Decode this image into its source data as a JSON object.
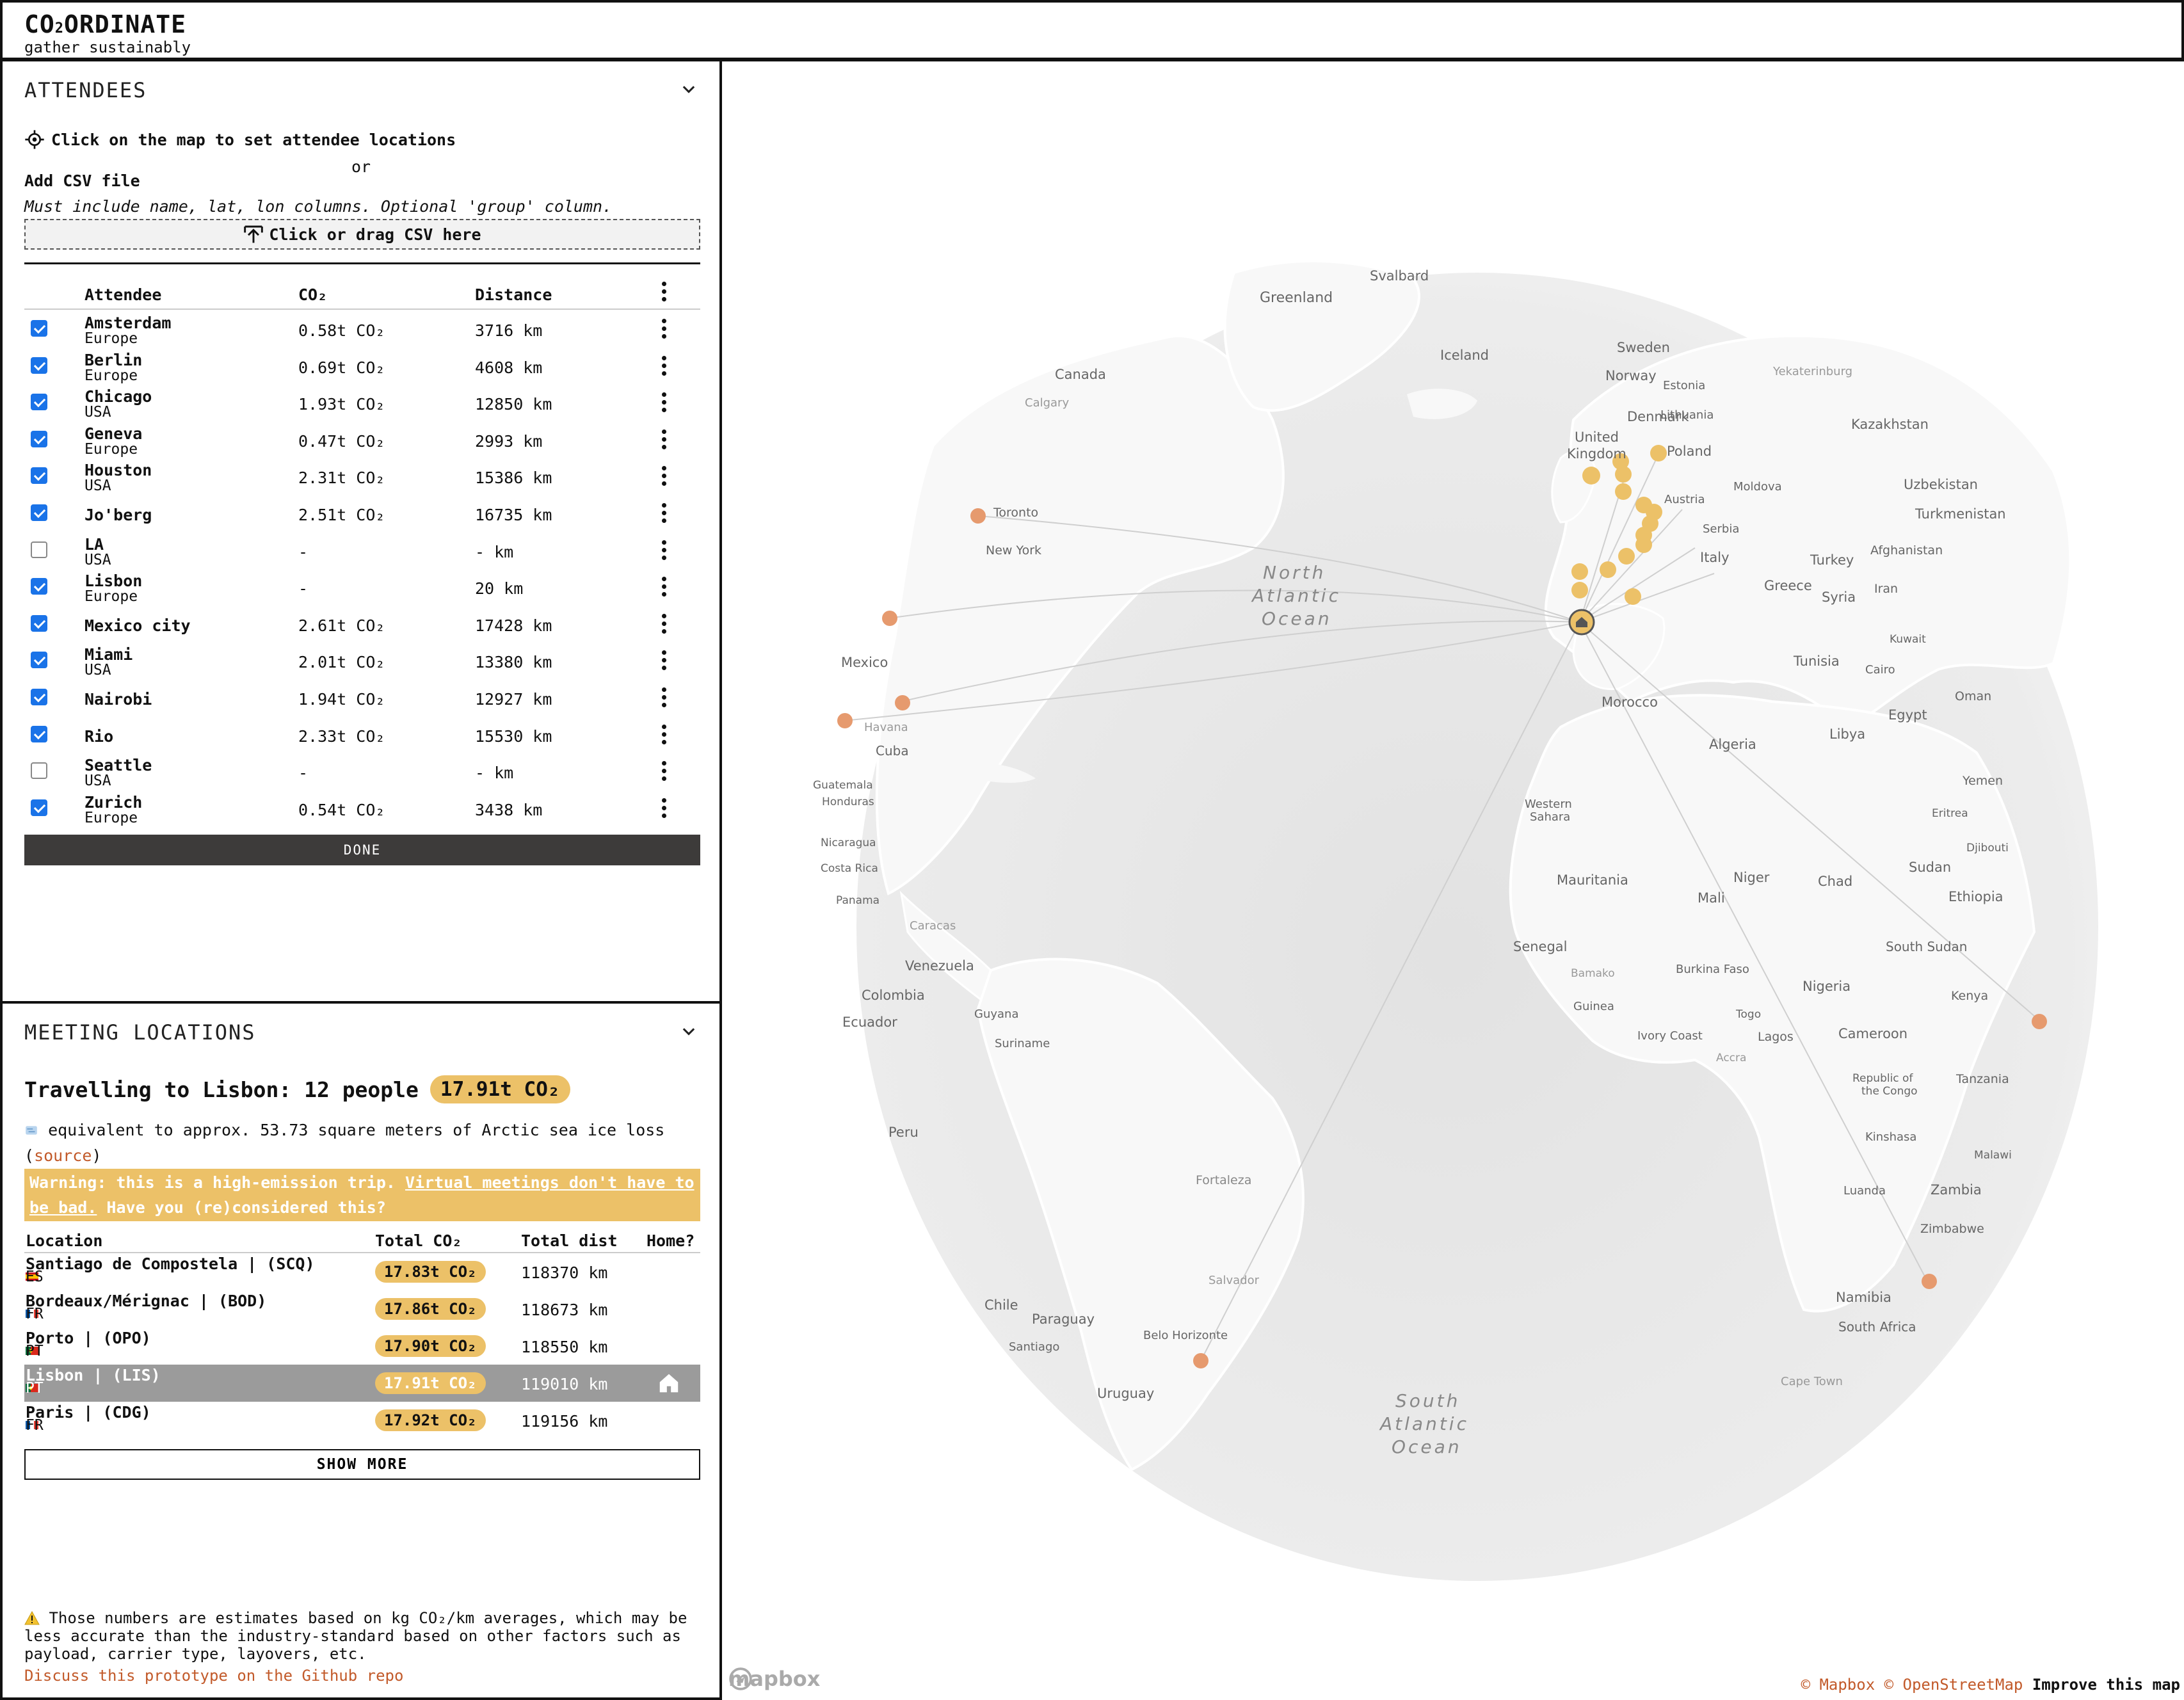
{
  "header": {
    "title_a": "CO",
    "title_sub": "2",
    "title_b": "ORDINATE",
    "subtitle": "gather sustainably"
  },
  "attendees": {
    "section_title": "ATTENDEES",
    "set_locations": "Click on the map to set attendee locations",
    "or": "or",
    "add_csv": "Add CSV file",
    "csv_hint": "Must include name, lat, lon columns. Optional 'group' column.",
    "csv_drop": "Click or drag CSV here",
    "columns": {
      "name": "Attendee",
      "co2": "CO₂",
      "distance": "Distance"
    },
    "rows": [
      {
        "name": "Amsterdam",
        "group": "Europe",
        "co2": "0.58t CO₂",
        "distance": "3716 km",
        "checked": true
      },
      {
        "name": "Berlin",
        "group": "Europe",
        "co2": "0.69t CO₂",
        "distance": "4608 km",
        "checked": true
      },
      {
        "name": "Chicago",
        "group": "USA",
        "co2": "1.93t CO₂",
        "distance": "12850 km",
        "checked": true
      },
      {
        "name": "Geneva",
        "group": "Europe",
        "co2": "0.47t CO₂",
        "distance": "2993 km",
        "checked": true
      },
      {
        "name": "Houston",
        "group": "USA",
        "co2": "2.31t CO₂",
        "distance": "15386 km",
        "checked": true
      },
      {
        "name": "Jo'berg",
        "group": "",
        "co2": "2.51t CO₂",
        "distance": "16735 km",
        "checked": true
      },
      {
        "name": "LA",
        "group": "USA",
        "co2": "-",
        "distance": "- km",
        "checked": false
      },
      {
        "name": "Lisbon",
        "group": "Europe",
        "co2": "-",
        "distance": "20 km",
        "checked": true
      },
      {
        "name": "Mexico city",
        "group": "",
        "co2": "2.61t CO₂",
        "distance": "17428 km",
        "checked": true
      },
      {
        "name": "Miami",
        "group": "USA",
        "co2": "2.01t CO₂",
        "distance": "13380 km",
        "checked": true
      },
      {
        "name": "Nairobi",
        "group": "",
        "co2": "1.94t CO₂",
        "distance": "12927 km",
        "checked": true
      },
      {
        "name": "Rio",
        "group": "",
        "co2": "2.33t CO₂",
        "distance": "15530 km",
        "checked": true
      },
      {
        "name": "Seattle",
        "group": "USA",
        "co2": "-",
        "distance": "- km",
        "checked": false
      },
      {
        "name": "Zurich",
        "group": "Europe",
        "co2": "0.54t CO₂",
        "distance": "3438 km",
        "checked": true
      }
    ],
    "done_label": "DONE"
  },
  "meetings": {
    "section_title": "MEETING LOCATIONS",
    "summary": "Travelling to Lisbon: 12 people",
    "summary_co2": "17.91t CO₂",
    "equiv_text": "equivalent to approx. 53.73 square meters of Arctic sea ice loss",
    "source_link": "source",
    "warning_prefix": "Warning: this is a high-emission trip.",
    "warning_link": "Virtual meetings don't have to be bad.",
    "warning_suffix": "Have you (re)considered this?",
    "columns": {
      "location": "Location",
      "co2": "Total CO₂",
      "distance": "Total dist",
      "home": "Home?"
    },
    "rows": [
      {
        "name": "Santiago de Compostela | (SCQ)",
        "country": "ES",
        "flag": "es",
        "co2": "17.83t CO₂",
        "distance": "118370 km",
        "selected": false
      },
      {
        "name": "Bordeaux/Mérignac | (BOD)",
        "country": "FR",
        "flag": "fr",
        "co2": "17.86t CO₂",
        "distance": "118673 km",
        "selected": false
      },
      {
        "name": "Porto | (OPO)",
        "country": "PT",
        "flag": "pt",
        "co2": "17.90t CO₂",
        "distance": "118550 km",
        "selected": false
      },
      {
        "name": "Lisbon | (LIS)",
        "country": "PT",
        "flag": "pt",
        "co2": "17.91t CO₂",
        "distance": "119010 km",
        "selected": true
      },
      {
        "name": "Paris | (CDG)",
        "country": "FR",
        "flag": "fr",
        "co2": "17.92t CO₂",
        "distance": "119156 km",
        "selected": false
      }
    ],
    "show_more_label": "SHOW MORE",
    "disclaimer": "Those numbers are estimates based on kg CO₂/km averages, which may be less accurate than the industry-standard based on other factors such as payload, carrier type, layovers, etc.",
    "github_link": "Discuss this prototype on the Github repo"
  },
  "map": {
    "labels": {
      "greenland": "Greenland",
      "svalbard": "Svalbard",
      "canada": "Canada",
      "calgary": "Calgary",
      "iceland": "Iceland",
      "sweden": "Sweden",
      "norway": "Norway",
      "estonia": "Estonia",
      "yekaterinburg": "Yekaterinburg",
      "denmark": "Denmark",
      "lithuania": "Lithuania",
      "united": "United",
      "kingdom": "Kingdom",
      "kazakhstan": "Kazakhstan",
      "poland": "Poland",
      "moldova": "Moldova",
      "uzbekistan": "Uzbekistan",
      "austria": "Austria",
      "turkmenistan": "Turkmenistan",
      "toronto": "Toronto",
      "serbia": "Serbia",
      "new_york": "New York",
      "north": "North",
      "atlantic": "Atlantic",
      "ocean": "Ocean",
      "italy": "Italy",
      "turkey": "Turkey",
      "afghanistan": "Afghanistan",
      "greece": "Greece",
      "syria": "Syria",
      "iran": "Iran",
      "mexico": "Mexico",
      "tunisia": "Tunisia",
      "kuwait": "Kuwait",
      "cairo": "Cairo",
      "oman": "Oman",
      "morocco": "Morocco",
      "havana": "Havana",
      "egypt": "Egypt",
      "libya": "Libya",
      "algeria": "Algeria",
      "cuba": "Cuba",
      "yemen": "Yemen",
      "guatemala": "Guatemala",
      "honduras": "Honduras",
      "western": "Western",
      "sahara": "Sahara",
      "eritrea": "Eritrea",
      "nicaragua": "Nicaragua",
      "djibouti": "Djibouti",
      "costa_rica": "Costa Rica",
      "mauritania": "Mauritania",
      "niger": "Niger",
      "chad": "Chad",
      "sudan": "Sudan",
      "ethiopia": "Ethiopia",
      "panama": "Panama",
      "mali": "Mali",
      "caracas": "Caracas",
      "senegal": "Senegal",
      "south_sudan": "South Sudan",
      "venezuela": "Venezuela",
      "bamako": "Bamako",
      "burkina_faso": "Burkina Faso",
      "nigeria": "Nigeria",
      "colombia": "Colombia",
      "kenya": "Kenya",
      "guinea": "Guinea",
      "togo": "Togo",
      "guyana": "Guyana",
      "ecuador": "Ecuador",
      "cameroon": "Cameroon",
      "ivory_coast": "Ivory Coast",
      "lagos": "Lagos",
      "suriname": "Suriname",
      "accra": "Accra",
      "tanzania": "Tanzania",
      "republic_of": "Republic of",
      "the_congo": "the Congo",
      "peru": "Peru",
      "kinshasa": "Kinshasa",
      "malawi": "Malawi",
      "fortaleza": "Fortaleza",
      "luanda": "Luanda",
      "zambia": "Zambia",
      "zimbabwe": "Zimbabwe",
      "salvador": "Salvador",
      "chile": "Chile",
      "paraguay": "Paraguay",
      "namibia": "Namibia",
      "south_africa": "South Africa",
      "santiago": "Santiago",
      "belo_horizonte": "Belo Horizonte",
      "uruguay": "Uruguay",
      "cape_town": "Cape Town",
      "south": "South"
    },
    "logo": "mapbox",
    "attribution_mapbox": "© Mapbox",
    "attribution_osm": "© OpenStreetMap",
    "improve": "Improve this map",
    "colors": {
      "marker": "#ecc168",
      "home_marker": "#e69a6e",
      "globe": "#e8e8e8",
      "land": "#fafafa"
    }
  }
}
